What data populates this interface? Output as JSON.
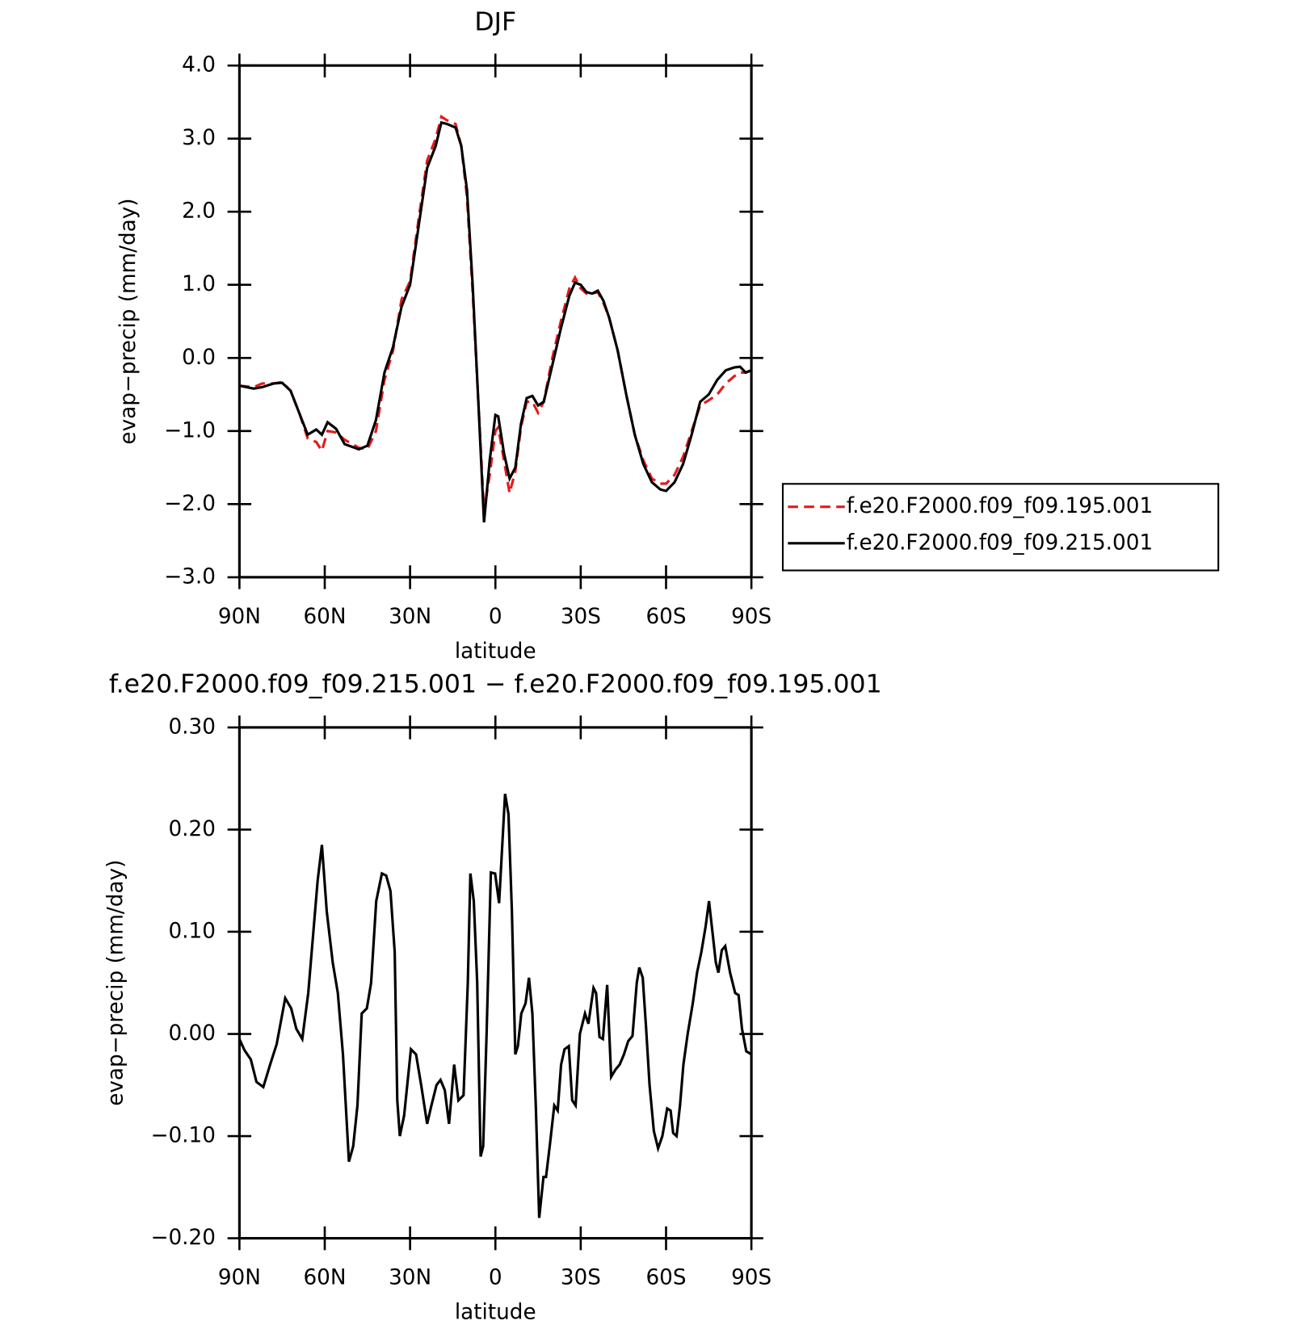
{
  "chart_data": [
    {
      "type": "line",
      "title": "DJF",
      "xlabel": "latitude",
      "ylabel": "evap−precip (mm/day)",
      "xlim": [
        90,
        -90
      ],
      "xticks": [
        {
          "value": 90,
          "label": "90N"
        },
        {
          "value": 60,
          "label": "60N"
        },
        {
          "value": 30,
          "label": "30N"
        },
        0,
        {
          "value": -30,
          "label": "30S"
        },
        {
          "value": -60,
          "label": "60S"
        },
        {
          "value": -90,
          "label": "90S"
        }
      ],
      "ylim": [
        -3.0,
        4.0
      ],
      "yticks": [
        {
          "value": -3,
          "label": "−3.0"
        },
        {
          "value": -2,
          "label": "−2.0"
        },
        {
          "value": -1,
          "label": "−1.0"
        },
        {
          "value": 0,
          "label": "0.0"
        },
        {
          "value": 1,
          "label": "1.0"
        },
        {
          "value": 2,
          "label": "2.0"
        },
        {
          "value": 3,
          "label": "3.0"
        },
        {
          "value": 4,
          "label": "4.0"
        }
      ],
      "legend": "right",
      "x": [
        90,
        85,
        82,
        78,
        75,
        72,
        69,
        66,
        63,
        61,
        59,
        56,
        53,
        48,
        45,
        42,
        39,
        36,
        33,
        30,
        27,
        24,
        21,
        19,
        17,
        14,
        12,
        10,
        8,
        6,
        4,
        2,
        0,
        -1,
        -3,
        -5,
        -7,
        -9,
        -11,
        -13,
        -15,
        -17,
        -20,
        -23,
        -26,
        -28,
        -30,
        -32,
        -34,
        -36,
        -38,
        -40,
        -43,
        -46,
        -49,
        -52,
        -55,
        -58,
        -60,
        -63,
        -66,
        -69,
        -72,
        -75,
        -78,
        -81,
        -84,
        -86,
        -88,
        -90
      ],
      "series": [
        {
          "name": "f.e20.F2000.f09_f09.195.001",
          "color": "#e41a1c",
          "linestyle": "dashed",
          "values": [
            -0.38,
            -0.4,
            -0.35,
            -0.35,
            -0.33,
            -0.45,
            -0.75,
            -1.1,
            -1.15,
            -1.27,
            -1.0,
            -1.02,
            -1.12,
            -1.23,
            -1.25,
            -1.0,
            -0.3,
            0.1,
            0.8,
            1.05,
            1.9,
            2.7,
            3.0,
            3.3,
            3.25,
            3.2,
            2.9,
            2.2,
            0.9,
            -0.6,
            -2.1,
            -1.6,
            -1.0,
            -0.95,
            -1.4,
            -1.85,
            -1.55,
            -0.95,
            -0.6,
            -0.6,
            -0.75,
            -0.6,
            0.0,
            0.5,
            0.95,
            1.1,
            0.95,
            0.88,
            0.88,
            0.9,
            0.75,
            0.55,
            0.1,
            -0.5,
            -1.05,
            -1.4,
            -1.65,
            -1.72,
            -1.72,
            -1.6,
            -1.35,
            -1.0,
            -0.65,
            -0.58,
            -0.5,
            -0.35,
            -0.25,
            -0.2,
            -0.2,
            -0.17
          ]
        },
        {
          "name": "f.e20.F2000.f09_f09.215.001",
          "color": "#000000",
          "linestyle": "solid",
          "values": [
            -0.38,
            -0.42,
            -0.4,
            -0.35,
            -0.34,
            -0.45,
            -0.75,
            -1.05,
            -0.98,
            -1.05,
            -0.88,
            -0.97,
            -1.18,
            -1.25,
            -1.2,
            -0.85,
            -0.2,
            0.15,
            0.7,
            1.0,
            1.8,
            2.6,
            2.9,
            3.22,
            3.2,
            3.15,
            2.9,
            2.3,
            1.0,
            -0.6,
            -2.25,
            -1.4,
            -0.78,
            -0.8,
            -1.3,
            -1.65,
            -1.5,
            -0.9,
            -0.55,
            -0.52,
            -0.65,
            -0.6,
            -0.1,
            0.4,
            0.85,
            1.03,
            1.0,
            0.9,
            0.88,
            0.92,
            0.78,
            0.55,
            0.1,
            -0.5,
            -1.05,
            -1.45,
            -1.7,
            -1.8,
            -1.82,
            -1.7,
            -1.45,
            -1.05,
            -0.6,
            -0.5,
            -0.3,
            -0.17,
            -0.13,
            -0.12,
            -0.2,
            -0.17
          ]
        }
      ]
    },
    {
      "type": "line",
      "title": "f.e20.F2000.f09_f09.215.001 − f.e20.F2000.f09_f09.195.001",
      "xlabel": "latitude",
      "ylabel": "evap−precip (mm/day)",
      "xlim": [
        90,
        -90
      ],
      "xticks": [
        {
          "value": 90,
          "label": "90N"
        },
        {
          "value": 60,
          "label": "60N"
        },
        {
          "value": 30,
          "label": "30N"
        },
        0,
        {
          "value": -30,
          "label": "30S"
        },
        {
          "value": -60,
          "label": "60S"
        },
        {
          "value": -90,
          "label": "90S"
        }
      ],
      "ylim": [
        -0.2,
        0.3
      ],
      "yticks": [
        {
          "value": -0.2,
          "label": "−0.20"
        },
        {
          "value": -0.1,
          "label": "−0.10"
        },
        {
          "value": 0,
          "label": "0.00"
        },
        {
          "value": 0.1,
          "label": "0.10"
        },
        {
          "value": 0.2,
          "label": "0.20"
        },
        {
          "value": 0.3,
          "label": "0.30"
        }
      ],
      "x": [
        90,
        88.2,
        86,
        84,
        81.6,
        79.2,
        76.9,
        73.9,
        71.8,
        70,
        67.9,
        65.8,
        64,
        62.5,
        61,
        59.3,
        57.2,
        55.4,
        53.6,
        51.5,
        50,
        48.5,
        47,
        45.2,
        43.7,
        41.9,
        39.9,
        38.4,
        36.9,
        35.4,
        34.5,
        33.6,
        32.1,
        29.7,
        27.9,
        26.1,
        24,
        22.5,
        20.7,
        19.3,
        17.8,
        16.3,
        14.5,
        13,
        11.2,
        9.7,
        8.8,
        7.6,
        6.4,
        5.2,
        4.3,
        3.1,
        1.6,
        0.1,
        -1.3,
        -3.4,
        -4.6,
        -5.8,
        -7,
        -7.9,
        -9.1,
        -10.6,
        -11.8,
        -13,
        -14.2,
        -15.4,
        -16.9,
        -17.8,
        -19.3,
        -20.7,
        -21.9,
        -23.1,
        -24.3,
        -25.8,
        -27,
        -28.2,
        -29.7,
        -31.5,
        -32.7,
        -34.5,
        -35.4,
        -36.6,
        -37.8,
        -39.3,
        -40.7,
        -42.2,
        -43.7,
        -45.2,
        -46.7,
        -48.2,
        -49.7,
        -50.6,
        -51.8,
        -53,
        -54.2,
        -55.7,
        -57.2,
        -58.7,
        -60.4,
        -61.6,
        -62.5,
        -63.7,
        -64.9,
        -66.1,
        -67.6,
        -69.4,
        -70.9,
        -72.4,
        -73.9,
        -75.1,
        -76.3,
        -77.5,
        -78.4,
        -79.6,
        -80.8,
        -82.5,
        -84.3,
        -85.5,
        -86.7,
        -88.2,
        -90
      ],
      "series": [
        {
          "color": "#000000",
          "linestyle": "solid",
          "values": [
            -0.005,
            -0.016,
            -0.025,
            -0.047,
            -0.052,
            -0.03,
            -0.01,
            0.035,
            0.025,
            0.005,
            -0.005,
            0.04,
            0.1,
            0.15,
            0.185,
            0.12,
            0.07,
            0.04,
            -0.02,
            -0.125,
            -0.11,
            -0.07,
            0.02,
            0.025,
            0.05,
            0.13,
            0.157,
            0.155,
            0.14,
            0.08,
            -0.065,
            -0.1,
            -0.08,
            -0.015,
            -0.02,
            -0.05,
            -0.088,
            -0.07,
            -0.05,
            -0.045,
            -0.055,
            -0.088,
            -0.03,
            -0.065,
            -0.06,
            0.05,
            0.157,
            0.13,
            0.05,
            -0.12,
            -0.11,
            0.0,
            0.158,
            0.157,
            0.128,
            0.235,
            0.215,
            0.12,
            -0.02,
            -0.012,
            0.02,
            0.03,
            0.055,
            0.02,
            -0.07,
            -0.18,
            -0.14,
            -0.14,
            -0.105,
            -0.07,
            -0.075,
            -0.03,
            -0.015,
            -0.012,
            -0.065,
            -0.07,
            0.0,
            0.02,
            0.01,
            0.045,
            0.04,
            -0.003,
            -0.005,
            0.048,
            -0.042,
            -0.035,
            -0.03,
            -0.02,
            -0.007,
            -0.002,
            0.05,
            0.065,
            0.055,
            0.005,
            -0.05,
            -0.095,
            -0.112,
            -0.1,
            -0.073,
            -0.075,
            -0.097,
            -0.1,
            -0.07,
            -0.03,
            0.0,
            0.03,
            0.06,
            0.08,
            0.105,
            0.13,
            0.1,
            0.07,
            0.06,
            0.082,
            0.086,
            0.06,
            0.04,
            0.038,
            0.005,
            -0.017,
            -0.02
          ]
        }
      ]
    }
  ]
}
